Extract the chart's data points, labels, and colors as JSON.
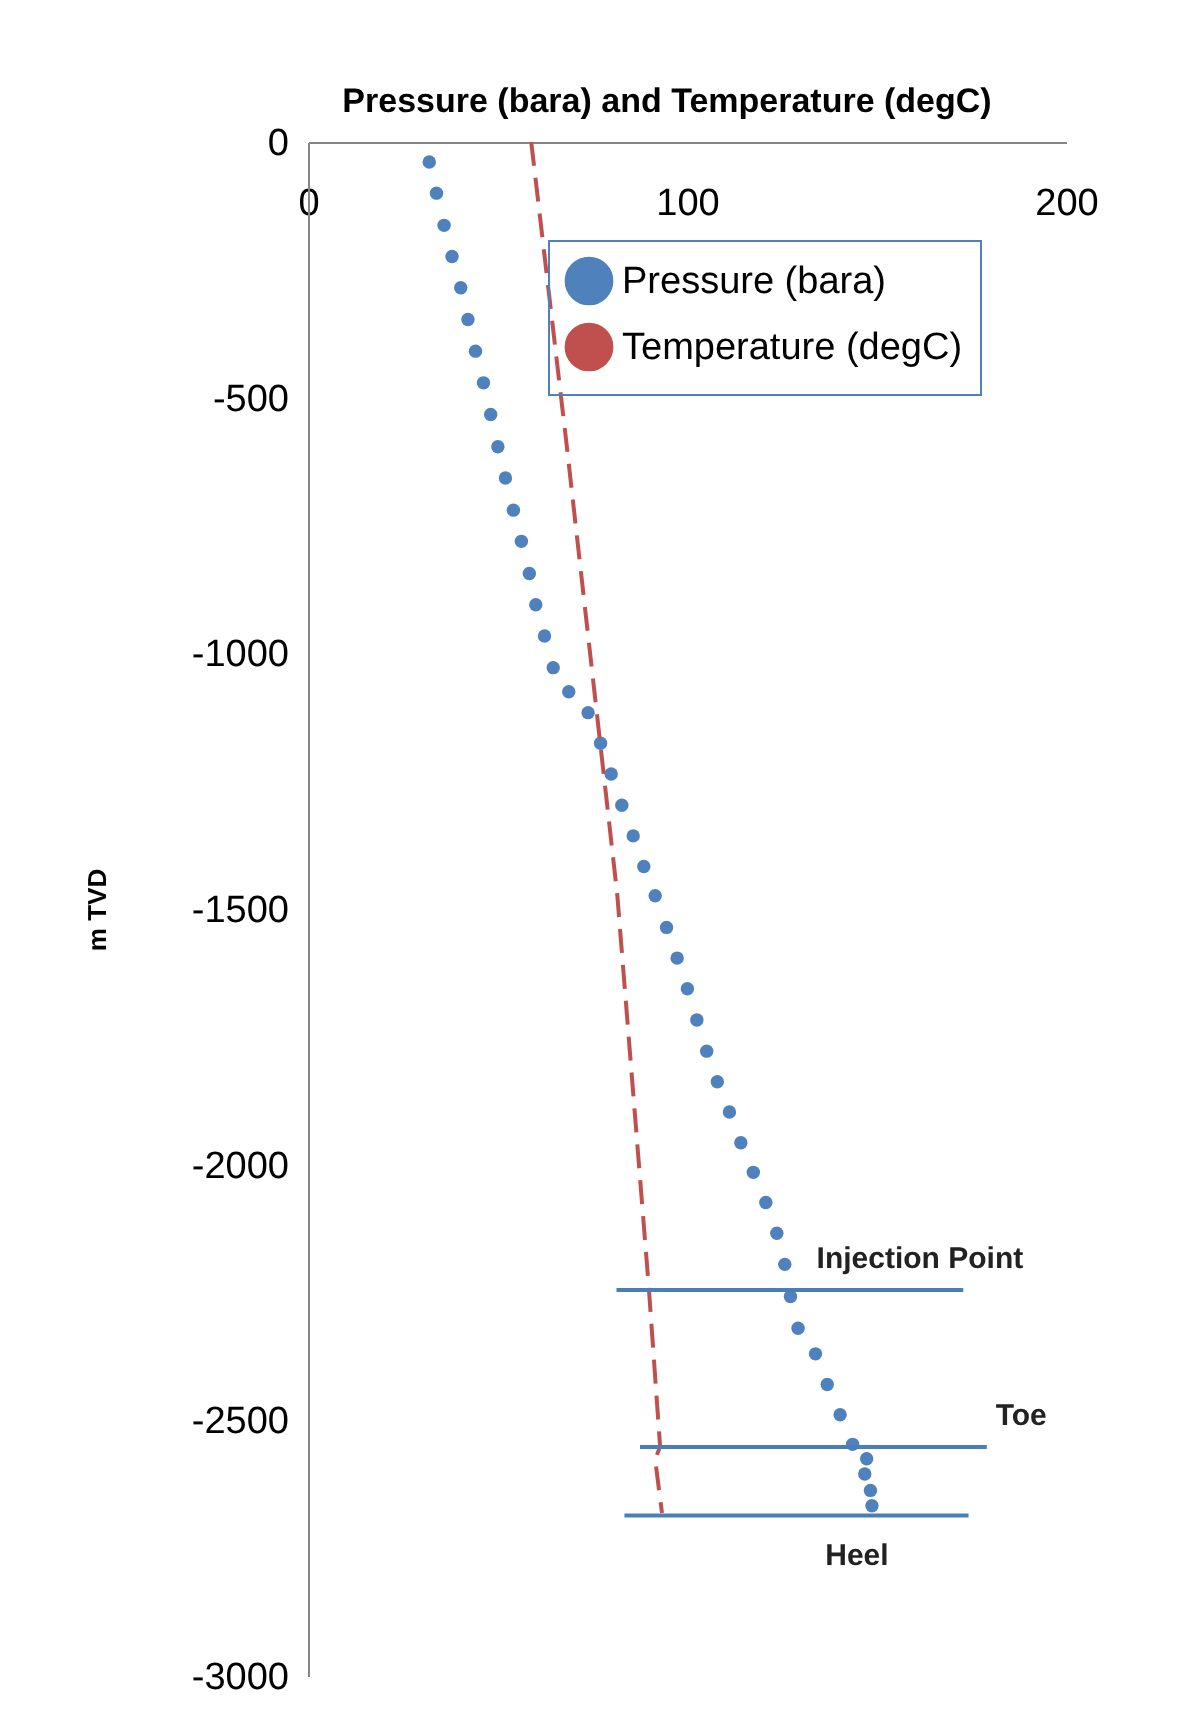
{
  "chart_data": {
    "type": "line",
    "title": "Pressure (bara) and Temperature (degC)",
    "ylabel": "m TVD",
    "xlim": [
      0,
      200
    ],
    "xticks": [
      0,
      100,
      200
    ],
    "ylim": [
      -3000,
      0
    ],
    "yticks": [
      0,
      -500,
      -1000,
      -1500,
      -2000,
      -2500,
      -3000
    ],
    "grid": false,
    "legend": "top right",
    "series": [
      {
        "name": "Pressure (bara)",
        "type": "scatter",
        "marker": "circle",
        "color": "#4f81bd",
        "x": [
          32.0,
          33.9,
          35.9,
          38.0,
          40.3,
          42.2,
          44.2,
          46.3,
          48.2,
          50.1,
          52.1,
          54.2,
          56.3,
          58.4,
          60.1,
          62.4,
          64.7,
          68.8,
          73.9,
          77.2,
          80.0,
          82.8,
          85.8,
          88.6,
          91.6,
          94.6,
          97.4,
          100.1,
          102.6,
          105.2,
          108.0,
          111.2,
          114.2,
          117.5,
          120.8,
          123.7,
          125.8,
          127.3,
          129.3,
          133.9,
          137.0,
          140.4,
          143.7,
          147.4,
          146.9,
          148.4,
          148.8
        ],
        "values": [
          -39,
          -100,
          -163,
          -224,
          -285,
          -347,
          -409,
          -471,
          -533,
          -596,
          -657,
          -720,
          -781,
          -844,
          -905,
          -966,
          -1028,
          -1075,
          -1116,
          -1176,
          -1236,
          -1297,
          -1357,
          -1417,
          -1474,
          -1536,
          -1596,
          -1656,
          -1717,
          -1778,
          -1838,
          -1897,
          -1957,
          -2015,
          -2074,
          -2134,
          -2195,
          -2258,
          -2320,
          -2370,
          -2430,
          -2489,
          -2547,
          -2575,
          -2605,
          -2637,
          -2667
        ]
      },
      {
        "name": "Temperature (degC)",
        "line_style": "dashed",
        "marker": "none",
        "color": "#c0504d",
        "x": [
          58.9,
          68.3,
          81.6,
          89.9,
          92.9,
          91.6,
          93.4
        ],
        "values": [
          0,
          -596,
          -1472,
          -2238,
          -2551,
          -2577,
          -2681
        ]
      },
      {
        "line_style": "solid",
        "marker": "none",
        "color": "#4a7ebb",
        "x": [
          81.4,
          172.9
        ],
        "values": [
          -2245,
          -2245
        ]
      },
      {
        "line_style": "solid",
        "marker": "none",
        "color": "#4a7ebb",
        "x": [
          87.6,
          179.1
        ],
        "values": [
          -2552,
          -2552
        ]
      },
      {
        "line_style": "solid",
        "marker": "none",
        "color": "#4a7ebb",
        "x": [
          83.5,
          174.3
        ],
        "values": [
          -2686,
          -2686
        ]
      }
    ],
    "annotations": [
      "Injection Point",
      "Toe",
      "Heel"
    ]
  }
}
